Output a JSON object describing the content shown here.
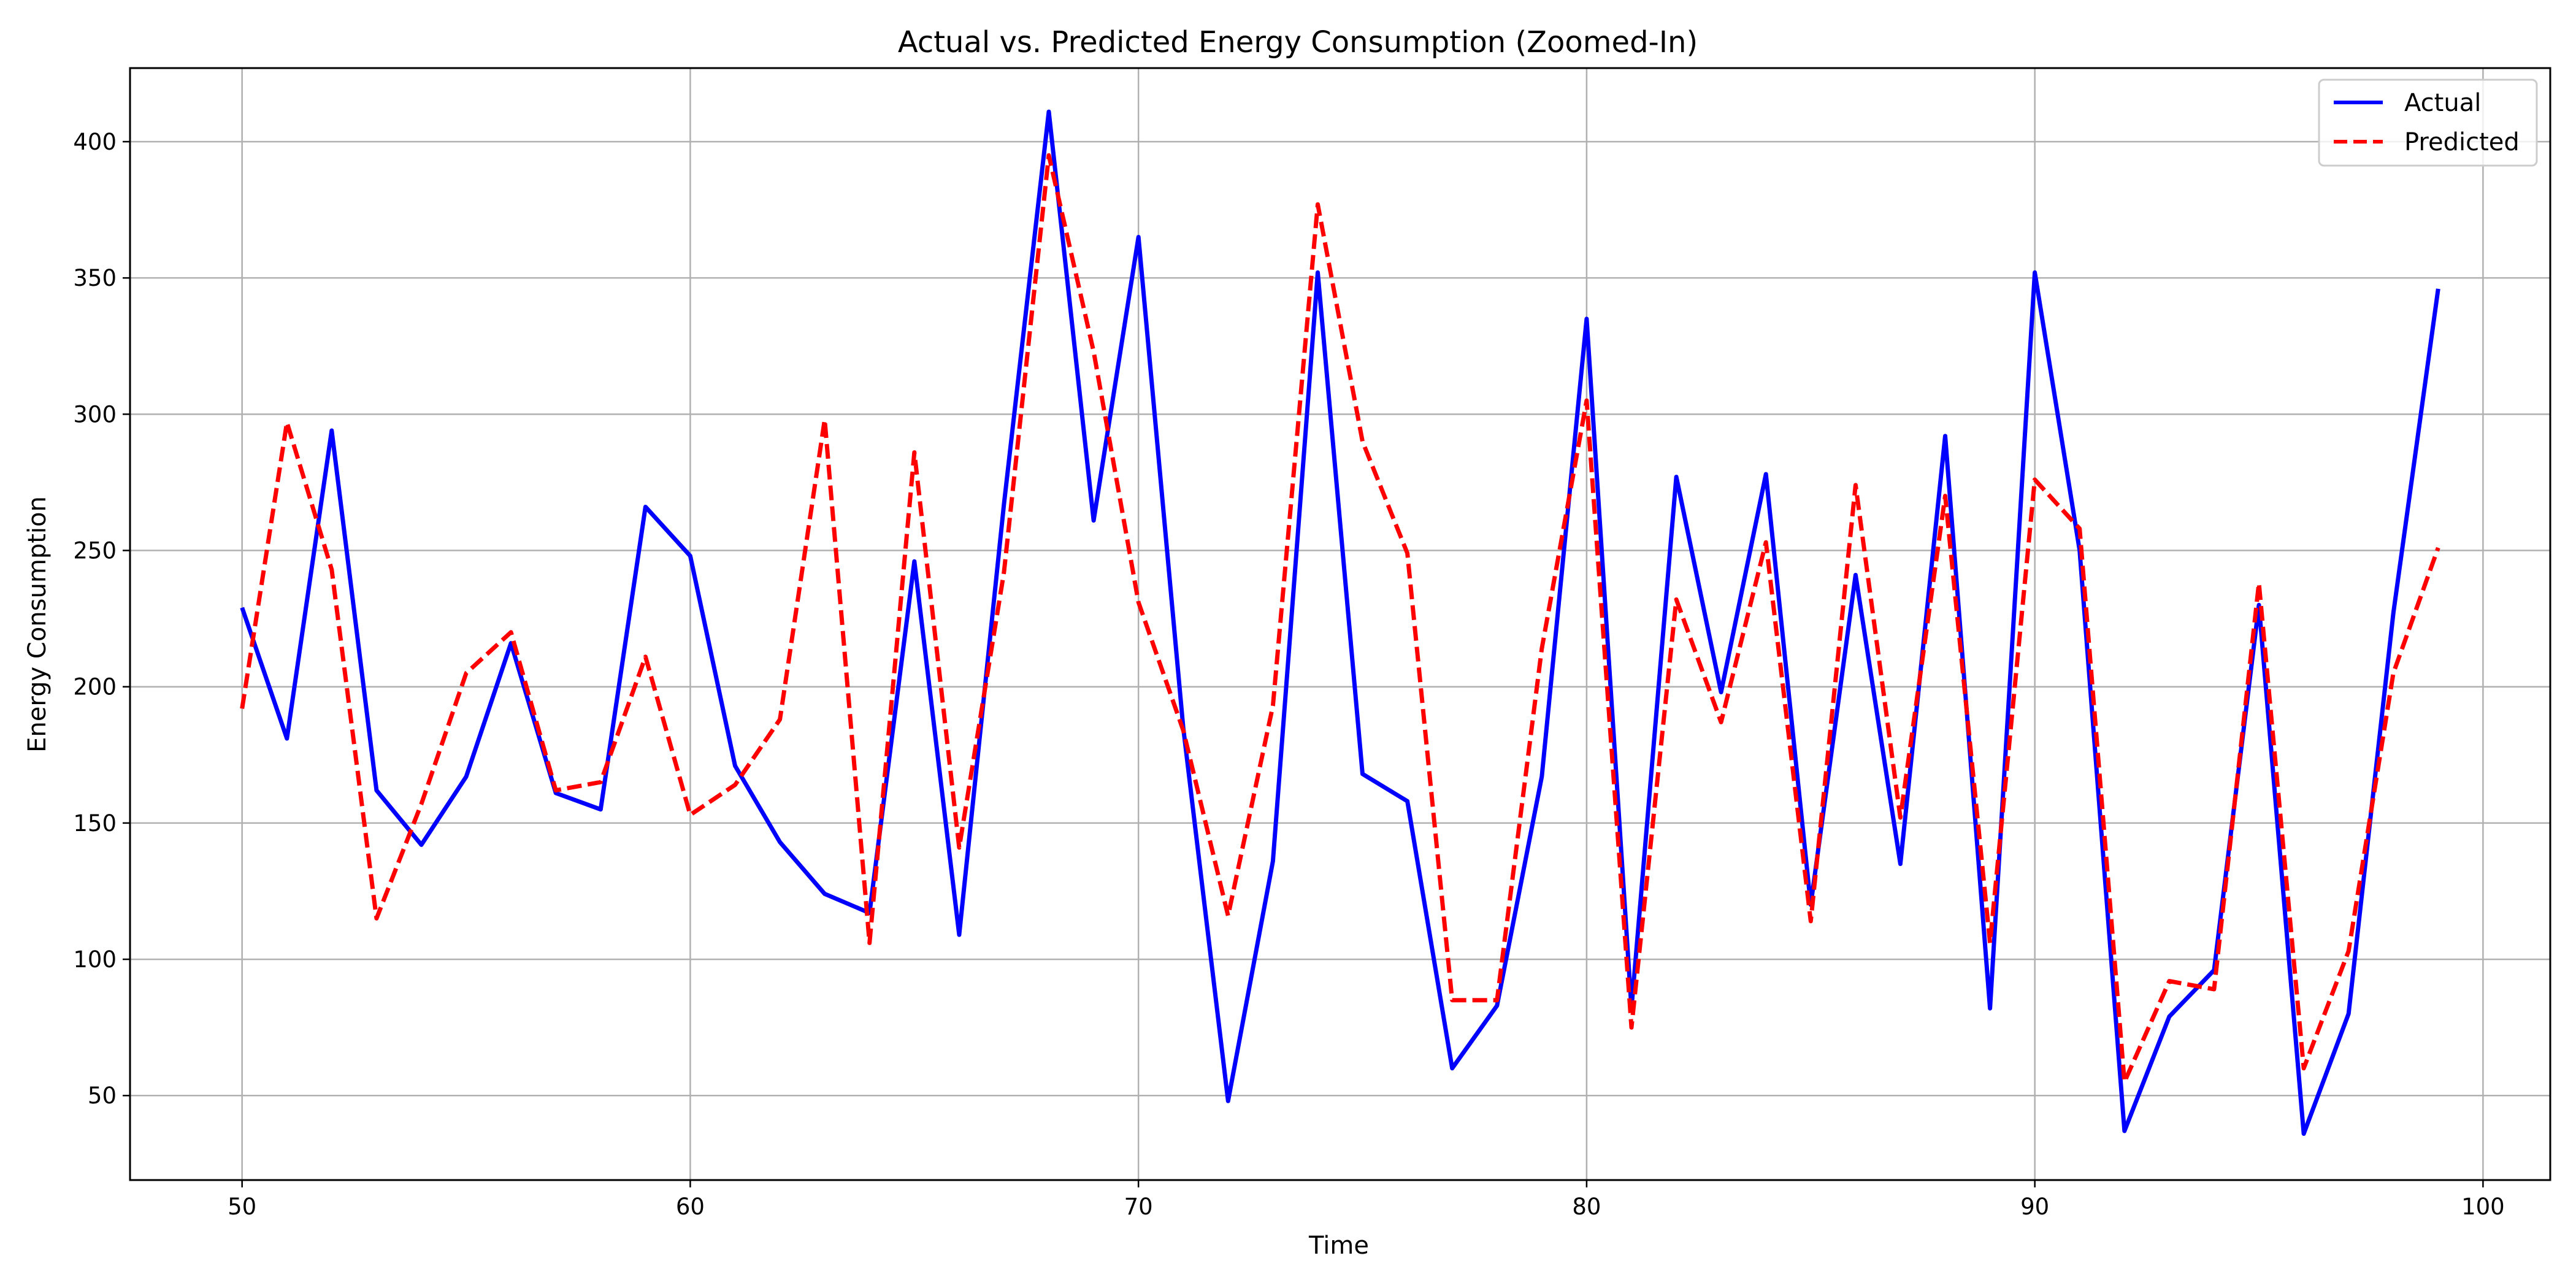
{
  "chart_data": {
    "type": "line",
    "title": "Actual vs. Predicted Energy Consumption (Zoomed-In)",
    "xlabel": "Time",
    "ylabel": "Energy Consumption",
    "xlim": [
      47.5,
      101.5
    ],
    "ylim": [
      19,
      427
    ],
    "x_ticks": [
      "50",
      "60",
      "70",
      "80",
      "90",
      "100"
    ],
    "y_ticks": [
      "50",
      "100",
      "150",
      "200",
      "250",
      "300",
      "350",
      "400"
    ],
    "grid": true,
    "legend_position": "top-right",
    "x": [
      50,
      51,
      52,
      53,
      54,
      55,
      56,
      57,
      58,
      59,
      60,
      61,
      62,
      63,
      64,
      65,
      66,
      67,
      68,
      69,
      70,
      71,
      72,
      73,
      74,
      75,
      76,
      77,
      78,
      79,
      80,
      81,
      82,
      83,
      84,
      85,
      86,
      87,
      88,
      89,
      90,
      91,
      92,
      93,
      94,
      95,
      96,
      97,
      98,
      99
    ],
    "series": [
      {
        "name": "Actual",
        "color": "#0000ff",
        "style": "solid",
        "values": [
          229,
          181,
          294,
          162,
          142,
          167,
          216,
          161,
          155,
          266,
          248,
          171,
          143,
          124,
          117,
          246,
          109,
          267,
          411,
          261,
          365,
          185,
          48,
          136,
          352,
          168,
          158,
          60,
          83,
          167,
          335,
          82,
          277,
          198,
          278,
          120,
          241,
          135,
          292,
          82,
          352,
          250,
          37,
          79,
          96,
          230,
          36,
          80,
          227,
          346
        ]
      },
      {
        "name": "Predicted",
        "color": "#ff0000",
        "style": "dashed",
        "values": [
          192,
          297,
          243,
          115,
          157,
          205,
          220,
          162,
          165,
          211,
          153,
          164,
          188,
          298,
          106,
          286,
          141,
          242,
          395,
          323,
          231,
          184,
          116,
          193,
          377,
          290,
          249,
          85,
          85,
          214,
          305,
          75,
          232,
          187,
          253,
          114,
          274,
          152,
          270,
          106,
          276,
          258,
          55,
          92,
          89,
          238,
          60,
          103,
          205,
          251
        ]
      }
    ]
  }
}
